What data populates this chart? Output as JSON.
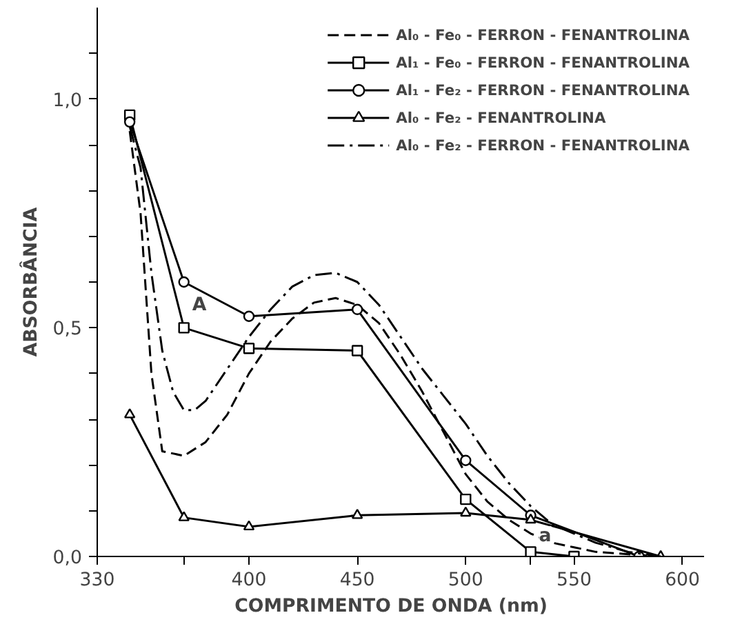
{
  "chart_data": {
    "type": "line",
    "xlabel": "COMPRIMENTO  DE  ONDA  (nm)",
    "ylabel": "ABSORBÂNCIA",
    "xlim": [
      330,
      610
    ],
    "ylim": [
      0,
      1.2
    ],
    "xticks": [
      330,
      {
        "value": 370,
        "label": null
      },
      400,
      450,
      500,
      {
        "value": 530,
        "label": null
      },
      550,
      600
    ],
    "yticks": [
      {
        "value": 0,
        "label": "0,0"
      },
      {
        "value": 0.1,
        "label": null
      },
      {
        "value": 0.2,
        "label": null
      },
      {
        "value": 0.3,
        "label": null
      },
      {
        "value": 0.4,
        "label": null
      },
      {
        "value": 0.5,
        "label": "0,5"
      },
      {
        "value": 0.6,
        "label": null
      },
      {
        "value": 0.7,
        "label": null
      },
      {
        "value": 0.8,
        "label": null
      },
      {
        "value": 0.9,
        "label": null
      },
      {
        "value": 1.0,
        "label": "1,0"
      },
      {
        "value": 1.1,
        "label": null
      }
    ],
    "grid": false,
    "legend": "top right",
    "annotations": [
      {
        "text": "A",
        "x": 370,
        "y": 0.55
      },
      {
        "text": "a",
        "x": 530,
        "y": 0.045
      }
    ],
    "series": [
      {
        "name": "Al₀ - Fe₀ - FERRON - FENANTROLINA",
        "color": "#000000",
        "line_style": "dashed",
        "marker": "none",
        "x": [
          345,
          350,
          355,
          360,
          370,
          380,
          390,
          400,
          410,
          420,
          430,
          440,
          450,
          460,
          470,
          480,
          490,
          500,
          510,
          520,
          530,
          540,
          550,
          560,
          575,
          590
        ],
        "values": [
          0.93,
          0.75,
          0.4,
          0.23,
          0.22,
          0.25,
          0.31,
          0.4,
          0.47,
          0.52,
          0.555,
          0.565,
          0.55,
          0.51,
          0.44,
          0.36,
          0.27,
          0.18,
          0.12,
          0.08,
          0.05,
          0.03,
          0.02,
          0.01,
          0.005,
          0
        ]
      },
      {
        "name": "Al₁ - Fe₀ - FERRON - FENANTROLINA",
        "color": "#000000",
        "line_style": "solid",
        "marker": "square",
        "x": [
          345,
          370,
          400,
          450,
          500,
          530,
          550
        ],
        "values": [
          0.965,
          0.5,
          0.455,
          0.45,
          0.125,
          0.01,
          0.0
        ]
      },
      {
        "name": "Al₁ - Fe₂ - FERRON - FENANTROLINA",
        "color": "#000000",
        "line_style": "solid",
        "marker": "circle",
        "x": [
          345,
          370,
          400,
          450,
          500,
          530,
          580
        ],
        "values": [
          0.95,
          0.6,
          0.525,
          0.54,
          0.21,
          0.09,
          0.0
        ]
      },
      {
        "name": "Al₀ - Fe₂ - FENANTROLINA",
        "color": "#000000",
        "line_style": "solid",
        "marker": "triangle",
        "x": [
          345,
          370,
          400,
          450,
          500,
          530,
          590
        ],
        "values": [
          0.31,
          0.085,
          0.065,
          0.09,
          0.095,
          0.08,
          0.0
        ]
      },
      {
        "name": "Al₀ - Fe₂ - FERRON - FENANTROLINA",
        "color": "#000000",
        "line_style": "dashdot",
        "marker": "none",
        "x": [
          345,
          350,
          355,
          360,
          365,
          370,
          375,
          380,
          390,
          400,
          410,
          420,
          430,
          440,
          450,
          460,
          470,
          480,
          490,
          500,
          510,
          520,
          530,
          540,
          550,
          560,
          575,
          590
        ],
        "values": [
          0.94,
          0.85,
          0.62,
          0.45,
          0.36,
          0.32,
          0.32,
          0.34,
          0.41,
          0.48,
          0.54,
          0.59,
          0.615,
          0.62,
          0.6,
          0.55,
          0.48,
          0.41,
          0.35,
          0.29,
          0.22,
          0.16,
          0.11,
          0.07,
          0.05,
          0.03,
          0.01,
          0
        ]
      }
    ]
  }
}
